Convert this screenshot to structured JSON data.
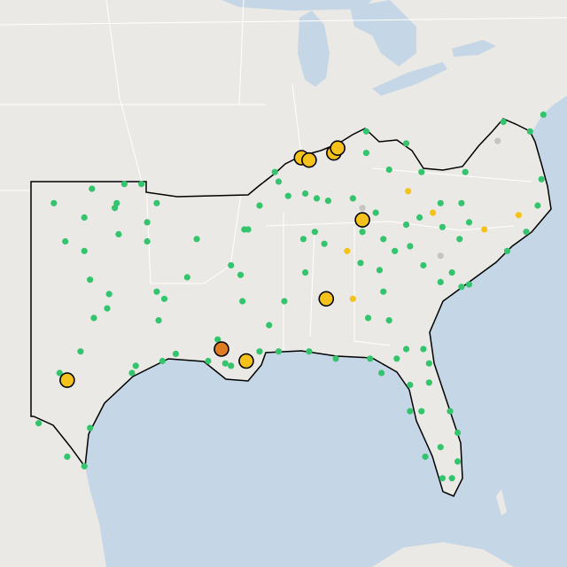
{
  "map": {
    "projection": "equirectangular",
    "series": [
      {
        "color": "#35c46e",
        "size": "small",
        "lon": [
          -101.8,
          -99.8,
          -98.1,
          -97.2,
          -98.5,
          -100.2,
          -98.6,
          -96.9,
          -96.4,
          -101.2,
          -100.2,
          -98.4,
          -96.9,
          -94.3,
          -99.9,
          -98.9,
          -96.4,
          -96.0,
          -94.8,
          -99.7,
          -99.0,
          -96.3,
          -100.4,
          -97.5,
          -97.7,
          -96.1,
          -95.4,
          -101.5,
          -99.9,
          -101.1,
          -100.2,
          -102.6,
          -93.7,
          -92.8,
          -92.5,
          -91.0,
          -93.2,
          -91.9,
          -92.0,
          -92.5,
          -91.8,
          -91.6,
          -91.0,
          -90.0,
          -90.5,
          -89.7,
          -90.0,
          -88.4,
          -87.0,
          -85.2,
          -88.1,
          -88.7,
          -87.6,
          -88.6,
          -85.7,
          -85.3,
          -84.2,
          -89.5,
          -88.6,
          -88.0,
          -87.4,
          -86.1,
          -85.6,
          -84.9,
          -84.5,
          -83.3,
          -82.6,
          -82.5,
          -83.3,
          -84.2,
          -85.4,
          -85.4,
          -90.2,
          -80.4,
          -80.0,
          -81.4,
          -80.5,
          -80.9,
          -82.4,
          -83.1,
          -83.9,
          -84.7,
          -84.5,
          -81.5,
          -80.4,
          -80.0,
          -78.0,
          -77.0,
          -76.4,
          -76.2,
          -76.8,
          -78.2,
          -76.1,
          -80.2,
          -81.5,
          -83.3,
          -82.4,
          -82.1,
          -82.1,
          -83.1,
          -83.1,
          -82.5,
          -81.0,
          -81.5,
          -80.6,
          -80.6,
          -82.3,
          -81.4,
          -80.9,
          -84.6,
          -83.8
        ],
        "lat": [
          36.1,
          36.7,
          36.9,
          36.9,
          36.1,
          35.5,
          35.9,
          35.3,
          36.1,
          34.5,
          34.1,
          34.8,
          34.5,
          34.6,
          32.9,
          32.3,
          32.4,
          32.1,
          33.0,
          31.3,
          31.7,
          31.2,
          29.9,
          29.3,
          29.0,
          29.5,
          29.8,
          29.0,
          26.7,
          25.5,
          25.1,
          26.9,
          29.5,
          29.4,
          29.3,
          29.9,
          30.4,
          32.0,
          33.1,
          33.5,
          35.0,
          35.0,
          36.0,
          37.0,
          31.0,
          32.0,
          29.9,
          29.9,
          29.6,
          29.6,
          34.9,
          34.6,
          34.4,
          33.2,
          33.6,
          31.3,
          31.2,
          36.4,
          36.5,
          36.3,
          36.2,
          36.3,
          34.9,
          35.7,
          34.6,
          35.2,
          35.5,
          37.4,
          38.6,
          37.5,
          39.1,
          38.2,
          37.4,
          36.1,
          35.3,
          35.1,
          34.6,
          33.2,
          33.5,
          34.3,
          34.1,
          33.3,
          32.4,
          32.8,
          32.6,
          32.7,
          34.1,
          34.9,
          36.0,
          37.1,
          39.1,
          39.5,
          39.8,
          37.4,
          36.1,
          30.0,
          30.0,
          29.4,
          28.6,
          28.5,
          27.4,
          27.4,
          27.4,
          25.9,
          25.3,
          26.5,
          25.5,
          24.6,
          24.6,
          29.0,
          29.6
        ]
      },
      {
        "color": "#f5c21b",
        "size": "small",
        "lon": [
          -83.2,
          -81.9,
          -79.2,
          -77.4,
          -86.4,
          -86.1
        ],
        "lat": [
          36.6,
          35.7,
          35.0,
          35.6,
          34.1,
          32.1
        ]
      },
      {
        "color": "#c4c4c4",
        "size": "small",
        "lon": [
          -78.5,
          -85.6,
          -81.5
        ],
        "lat": [
          38.7,
          35.9,
          33.9
        ]
      },
      {
        "color": "#f5c21b",
        "size": "large",
        "lon": [
          -101.1,
          -91.7,
          -87.5,
          -85.6,
          -88.8,
          -88.4,
          -87.1,
          -86.9
        ],
        "lat": [
          28.7,
          29.5,
          32.1,
          35.4,
          38.0,
          37.9,
          38.2,
          38.4
        ]
      },
      {
        "color": "#e07b22",
        "size": "large",
        "lon": [
          -93.0
        ],
        "lat": [
          30.0
        ]
      }
    ]
  }
}
